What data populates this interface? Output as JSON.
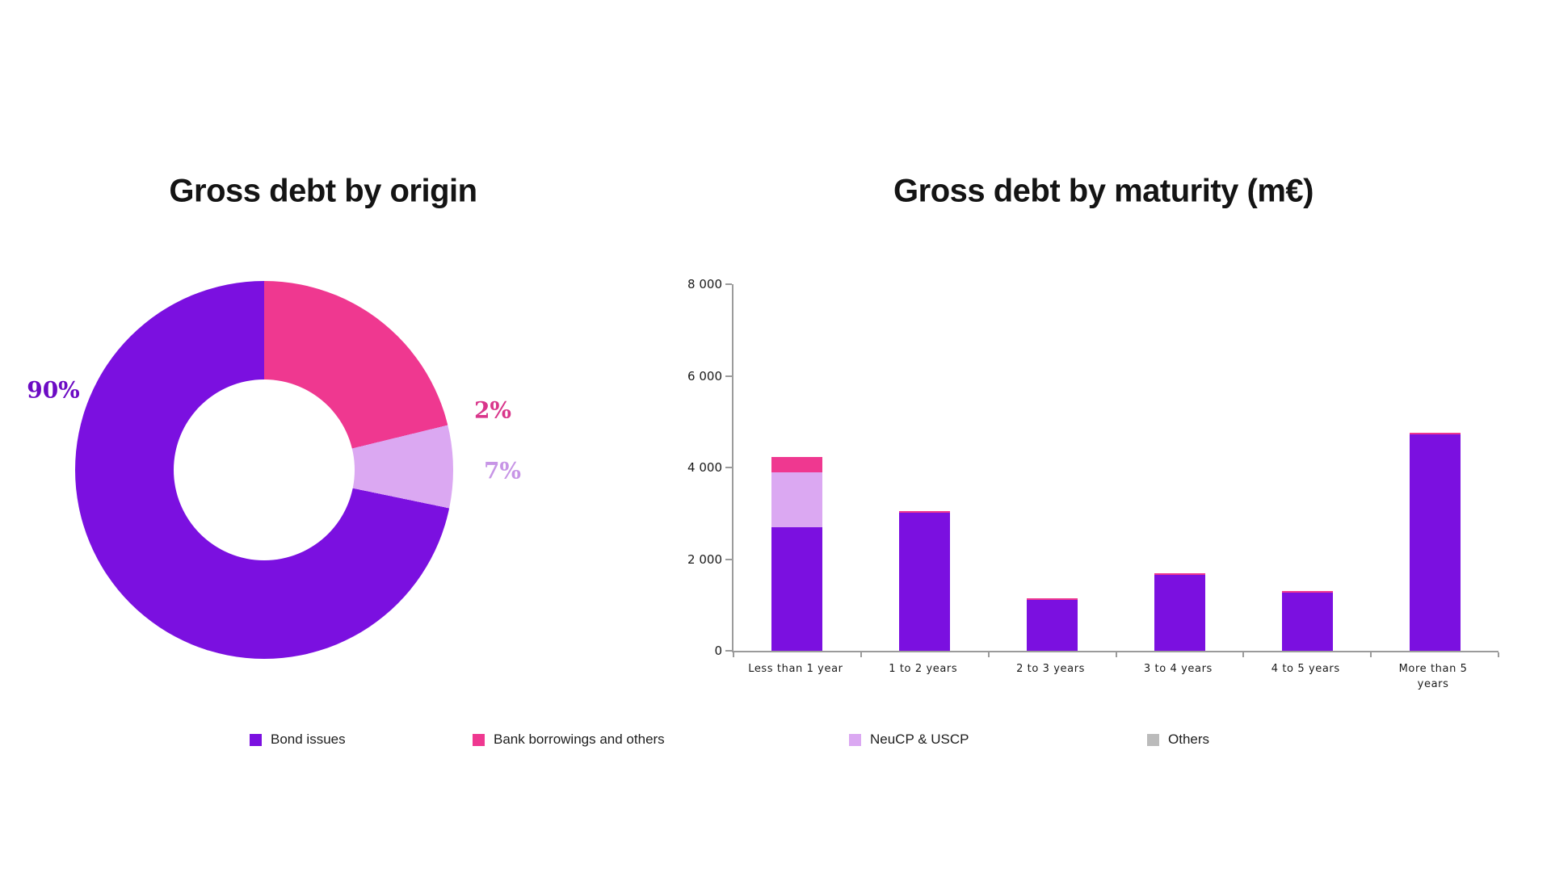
{
  "titles": {
    "left": "Gross debt by origin",
    "right": "Gross debt by maturity (m€)"
  },
  "colors": {
    "bond": "#7b10e0",
    "bank": "#ef3890",
    "neucp": "#dba8f2",
    "others": "#bbbbbb",
    "axis": "#9b9b9b"
  },
  "donut_labels": {
    "bond": {
      "text": "90%",
      "color": "#6c0bc4"
    },
    "bank": {
      "text": "2%",
      "color": "#d9368b"
    },
    "neucp": {
      "text": "7%",
      "color": "#c795e6"
    }
  },
  "legend": {
    "items": [
      {
        "label": "Bond issues",
        "color": "#7b10e0"
      },
      {
        "label": "Bank borrowings and others",
        "color": "#ef3890"
      },
      {
        "label": "NeuCP & USCP",
        "color": "#dba8f2"
      },
      {
        "label": "Others",
        "color": "#bbbbbb"
      }
    ]
  },
  "chart_data": [
    {
      "type": "pie",
      "title": "Gross debt by origin",
      "donut": true,
      "start_angle_deg_cw_from_top": 69,
      "slices": [
        {
          "label": "Bank borrowings and others",
          "value_pct": 2,
          "color": "#ef3890",
          "data_label": "2%"
        },
        {
          "label": "NeuCP & USCP",
          "value_pct": 7,
          "color": "#dba8f2",
          "data_label": "7%"
        },
        {
          "label": "Bond issues",
          "value_pct": 90,
          "color": "#7b10e0",
          "data_label": "90%"
        },
        {
          "label": "Others",
          "value_pct": 0,
          "color": "#bbbbbb",
          "data_label": null
        }
      ]
    },
    {
      "type": "bar",
      "stacked": true,
      "title": "Gross debt by maturity (m€)",
      "categories": [
        "Less than 1 year",
        "1 to 2 years",
        "2 to 3 years",
        "3 to 4 years",
        "4 to 5 years",
        "More than 5 years"
      ],
      "series": [
        {
          "name": "Bond issues",
          "color": "#7b10e0",
          "values": [
            2700,
            3050,
            1150,
            1700,
            1300,
            4750
          ]
        },
        {
          "name": "NeuCP & USCP",
          "color": "#dba8f2",
          "values": [
            1200,
            0,
            0,
            0,
            0,
            0
          ]
        },
        {
          "name": "Bank borrowings and others",
          "color": "#ef3890",
          "values": [
            330,
            0,
            0,
            0,
            0,
            0
          ]
        }
      ],
      "ylabel": "",
      "xlabel": "",
      "ylim": [
        0,
        8000
      ],
      "yticks": {
        "values": [
          0,
          2000,
          4000,
          6000,
          8000
        ],
        "labels": [
          "0",
          "2 000",
          "4 000",
          "6 000",
          "8 000"
        ]
      },
      "grid": false,
      "legend_position": "bottom"
    }
  ]
}
